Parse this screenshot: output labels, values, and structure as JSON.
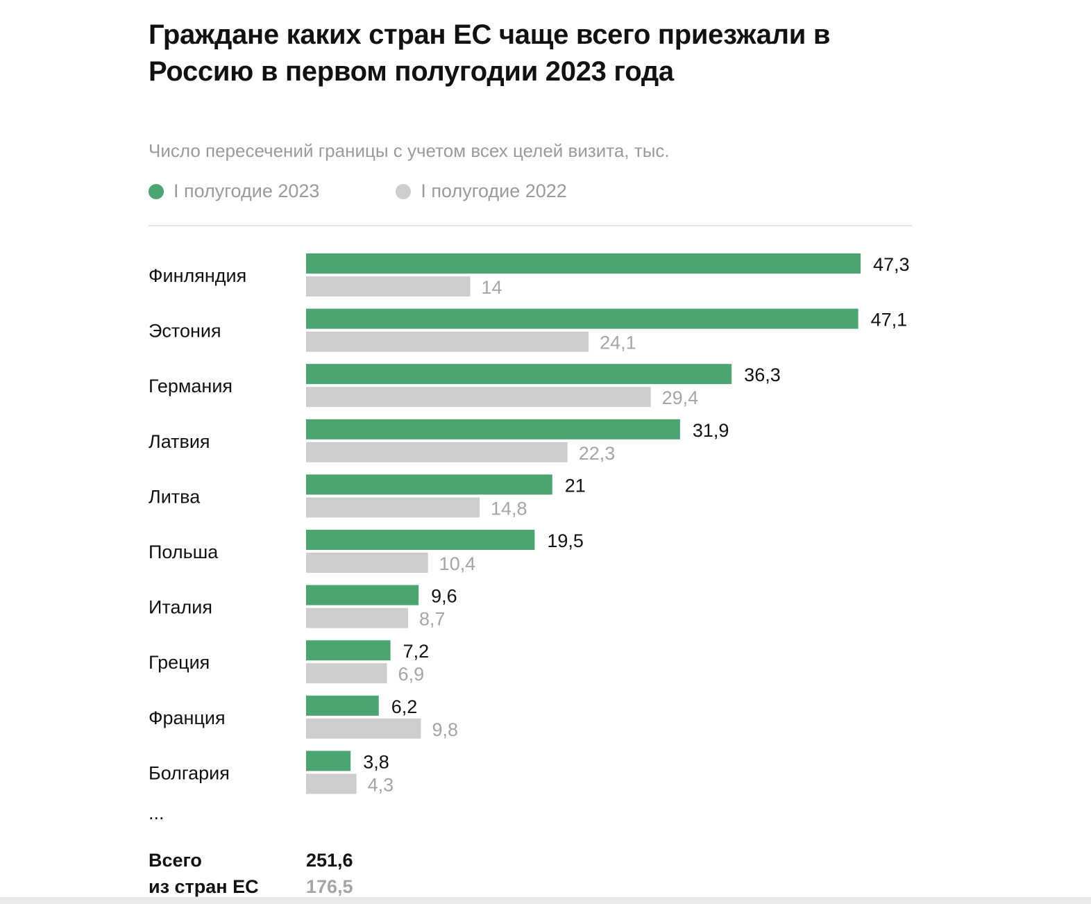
{
  "chart_data": {
    "type": "bar",
    "orientation": "horizontal",
    "title": "Граждане каких стран ЕС чаще всего приезжали в Россию в первом полугодии 2023 года",
    "subtitle": "Число пересечений границы с учетом всех целей визита, тыс.",
    "legend_placement": "top-left",
    "grid": false,
    "xlim": [
      0,
      47.3
    ],
    "categories": [
      "Финляндия",
      "Эстония",
      "Германия",
      "Латвия",
      "Литва",
      "Польша",
      "Италия",
      "Греция",
      "Франция",
      "Болгария"
    ],
    "series": [
      {
        "name": "I полугодие 2023",
        "color": "#4aa571",
        "values": [
          47.3,
          47.1,
          36.3,
          31.9,
          21,
          19.5,
          9.6,
          7.2,
          6.2,
          3.8
        ],
        "labels": [
          "47,3",
          "47,1",
          "36,3",
          "31,9",
          "21",
          "19,5",
          "9,6",
          "7,2",
          "6,2",
          "3,8"
        ]
      },
      {
        "name": "I полугодие 2022",
        "color": "#cdcdcd",
        "values": [
          14,
          24.1,
          29.4,
          22.3,
          14.8,
          10.4,
          8.7,
          6.9,
          9.8,
          4.3
        ],
        "labels": [
          "14",
          "24,1",
          "29,4",
          "22,3",
          "14,8",
          "10,4",
          "8,7",
          "6,9",
          "9,8",
          "4,3"
        ]
      }
    ],
    "ellipsis": "...",
    "total": {
      "label_line1": "Всего",
      "label_line2": "из стран ЕС",
      "value_2023": "251,6",
      "value_2022": "176,5"
    }
  }
}
